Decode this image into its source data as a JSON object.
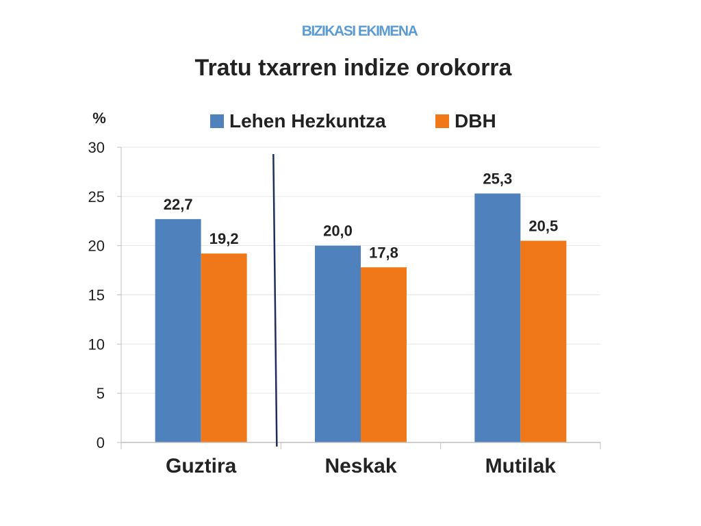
{
  "header": {
    "supertitle": "BIZIKASI EKIMENA"
  },
  "chart_data": {
    "type": "bar",
    "title": "Tratu txarren indize orokorra",
    "ylabel": "%",
    "xlabel": "",
    "categories": [
      "Guztira",
      "Neskak",
      "Mutilak"
    ],
    "series": [
      {
        "name": "Lehen Hezkuntza",
        "values": [
          22.7,
          20.0,
          25.3
        ],
        "labels": [
          "22,7",
          "20,0",
          "25,3"
        ],
        "color": "#4f81bd"
      },
      {
        "name": "DBH",
        "values": [
          19.2,
          17.8,
          20.5
        ],
        "labels": [
          "19,2",
          "17,8",
          "20,5"
        ],
        "color": "#f07818"
      }
    ],
    "ylim": [
      0,
      30
    ],
    "yticks": [
      0,
      5,
      10,
      15,
      20,
      25,
      30
    ],
    "grid": true,
    "legend": "top",
    "divider_after_category": 0,
    "colors": {
      "divider": "#1f2d5c",
      "grid": "#e6e6e6",
      "axis": "#bfbfbf"
    }
  }
}
